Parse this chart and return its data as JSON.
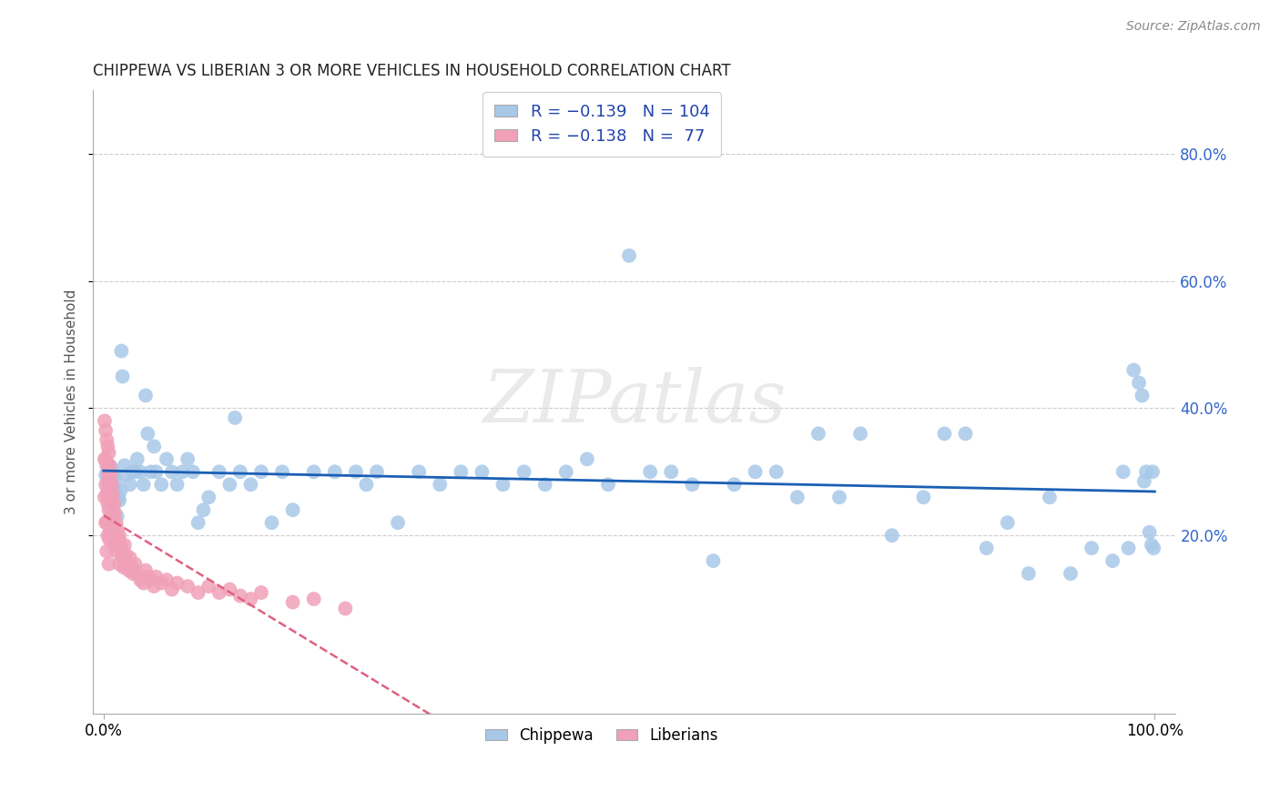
{
  "title": "CHIPPEWA VS LIBERIAN 3 OR MORE VEHICLES IN HOUSEHOLD CORRELATION CHART",
  "source": "Source: ZipAtlas.com",
  "ylabel": "3 or more Vehicles in Household",
  "ytick_labels": [
    "20.0%",
    "40.0%",
    "60.0%",
    "80.0%"
  ],
  "ytick_values": [
    0.2,
    0.4,
    0.6,
    0.8
  ],
  "legend_label1": "Chippewa",
  "legend_label2": "Liberians",
  "chippewa_color": "#a8c8e8",
  "liberian_color": "#f0a0b8",
  "chippewa_line_color": "#1a5fb4",
  "liberian_line_color": "#e06080",
  "background_color": "#ffffff",
  "chippewa_x": [
    0.002,
    0.004,
    0.005,
    0.006,
    0.006,
    0.007,
    0.008,
    0.008,
    0.009,
    0.01,
    0.011,
    0.012,
    0.013,
    0.014,
    0.015,
    0.016,
    0.017,
    0.018,
    0.02,
    0.022,
    0.025,
    0.028,
    0.03,
    0.032,
    0.035,
    0.038,
    0.04,
    0.042,
    0.045,
    0.048,
    0.05,
    0.055,
    0.06,
    0.065,
    0.07,
    0.075,
    0.08,
    0.085,
    0.09,
    0.095,
    0.1,
    0.11,
    0.12,
    0.125,
    0.13,
    0.14,
    0.15,
    0.16,
    0.17,
    0.18,
    0.2,
    0.22,
    0.24,
    0.25,
    0.26,
    0.28,
    0.3,
    0.32,
    0.34,
    0.36,
    0.38,
    0.4,
    0.42,
    0.44,
    0.46,
    0.48,
    0.5,
    0.52,
    0.54,
    0.56,
    0.58,
    0.6,
    0.62,
    0.64,
    0.66,
    0.68,
    0.7,
    0.72,
    0.75,
    0.78,
    0.8,
    0.82,
    0.84,
    0.86,
    0.88,
    0.9,
    0.92,
    0.94,
    0.96,
    0.97,
    0.975,
    0.98,
    0.985,
    0.988,
    0.99,
    0.992,
    0.995,
    0.997,
    0.998,
    0.999,
    0.004,
    0.006,
    0.008,
    0.01
  ],
  "chippewa_y": [
    0.295,
    0.275,
    0.31,
    0.285,
    0.26,
    0.3,
    0.28,
    0.265,
    0.295,
    0.25,
    0.27,
    0.285,
    0.23,
    0.26,
    0.255,
    0.27,
    0.49,
    0.45,
    0.31,
    0.295,
    0.28,
    0.3,
    0.3,
    0.32,
    0.3,
    0.28,
    0.42,
    0.36,
    0.3,
    0.34,
    0.3,
    0.28,
    0.32,
    0.3,
    0.28,
    0.3,
    0.32,
    0.3,
    0.22,
    0.24,
    0.26,
    0.3,
    0.28,
    0.385,
    0.3,
    0.28,
    0.3,
    0.22,
    0.3,
    0.24,
    0.3,
    0.3,
    0.3,
    0.28,
    0.3,
    0.22,
    0.3,
    0.28,
    0.3,
    0.3,
    0.28,
    0.3,
    0.28,
    0.3,
    0.32,
    0.28,
    0.64,
    0.3,
    0.3,
    0.28,
    0.16,
    0.28,
    0.3,
    0.3,
    0.26,
    0.36,
    0.26,
    0.36,
    0.2,
    0.26,
    0.36,
    0.36,
    0.18,
    0.22,
    0.14,
    0.26,
    0.14,
    0.18,
    0.16,
    0.3,
    0.18,
    0.46,
    0.44,
    0.42,
    0.285,
    0.3,
    0.205,
    0.185,
    0.3,
    0.18,
    0.305,
    0.295,
    0.305,
    0.295
  ],
  "liberian_x": [
    0.001,
    0.001,
    0.001,
    0.002,
    0.002,
    0.002,
    0.002,
    0.003,
    0.003,
    0.003,
    0.003,
    0.003,
    0.004,
    0.004,
    0.004,
    0.004,
    0.005,
    0.005,
    0.005,
    0.005,
    0.005,
    0.006,
    0.006,
    0.006,
    0.007,
    0.007,
    0.007,
    0.008,
    0.008,
    0.008,
    0.009,
    0.009,
    0.01,
    0.01,
    0.011,
    0.011,
    0.012,
    0.012,
    0.013,
    0.014,
    0.015,
    0.015,
    0.016,
    0.017,
    0.018,
    0.019,
    0.02,
    0.021,
    0.022,
    0.024,
    0.025,
    0.027,
    0.028,
    0.03,
    0.032,
    0.035,
    0.038,
    0.04,
    0.042,
    0.045,
    0.048,
    0.05,
    0.055,
    0.06,
    0.065,
    0.07,
    0.08,
    0.09,
    0.1,
    0.11,
    0.12,
    0.13,
    0.14,
    0.15,
    0.18,
    0.2,
    0.23
  ],
  "liberian_y": [
    0.38,
    0.32,
    0.26,
    0.365,
    0.32,
    0.28,
    0.22,
    0.35,
    0.31,
    0.265,
    0.22,
    0.175,
    0.34,
    0.295,
    0.25,
    0.2,
    0.33,
    0.285,
    0.24,
    0.195,
    0.155,
    0.31,
    0.265,
    0.21,
    0.295,
    0.25,
    0.2,
    0.28,
    0.235,
    0.19,
    0.265,
    0.215,
    0.25,
    0.2,
    0.235,
    0.185,
    0.22,
    0.175,
    0.21,
    0.195,
    0.2,
    0.155,
    0.185,
    0.175,
    0.165,
    0.15,
    0.185,
    0.17,
    0.155,
    0.145,
    0.165,
    0.15,
    0.14,
    0.155,
    0.14,
    0.13,
    0.125,
    0.145,
    0.135,
    0.13,
    0.12,
    0.135,
    0.125,
    0.13,
    0.115,
    0.125,
    0.12,
    0.11,
    0.12,
    0.11,
    0.115,
    0.105,
    0.1,
    0.11,
    0.095,
    0.1,
    0.085
  ]
}
